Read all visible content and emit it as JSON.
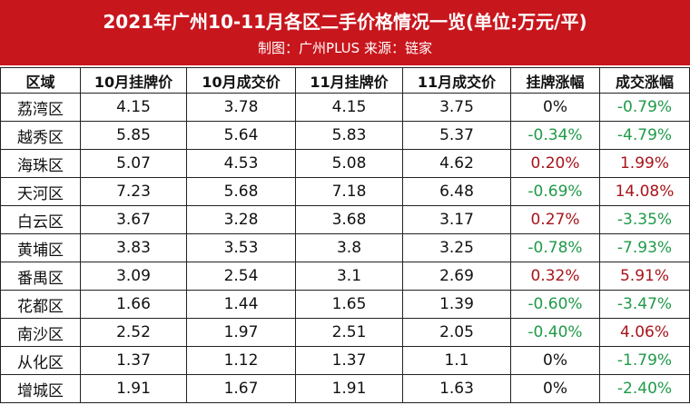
{
  "header": {
    "title": "2021年广州10-11月各区二手价格情况一览(单位:万元/平)",
    "subtitle": "制图：广州PLUS  来源：链家"
  },
  "table": {
    "columns": [
      "区域",
      "10月挂牌价",
      "10月成交价",
      "11月挂牌价",
      "11月成交价",
      "挂牌涨幅",
      "成交涨幅"
    ],
    "rows": [
      [
        "荔湾区",
        "4.15",
        "3.78",
        "4.15",
        "3.75",
        "0%",
        "-0.79%"
      ],
      [
        "越秀区",
        "5.85",
        "5.64",
        "5.83",
        "5.37",
        "-0.34%",
        "-4.79%"
      ],
      [
        "海珠区",
        "5.07",
        "4.53",
        "5.08",
        "4.62",
        "0.20%",
        "1.99%"
      ],
      [
        "天河区",
        "7.23",
        "5.68",
        "7.18",
        "6.48",
        "-0.69%",
        "14.08%"
      ],
      [
        "白云区",
        "3.67",
        "3.28",
        "3.68",
        "3.17",
        "0.27%",
        "-3.35%"
      ],
      [
        "黄埔区",
        "3.83",
        "3.53",
        "3.8",
        "3.25",
        "-0.78%",
        "-7.93%"
      ],
      [
        "番禺区",
        "3.09",
        "2.54",
        "3.1",
        "2.69",
        "0.32%",
        "5.91%"
      ],
      [
        "花都区",
        "1.66",
        "1.44",
        "1.65",
        "1.39",
        "-0.60%",
        "-3.47%"
      ],
      [
        "南沙区",
        "2.52",
        "1.97",
        "2.51",
        "2.05",
        "-0.40%",
        "4.06%"
      ],
      [
        "从化区",
        "1.37",
        "1.12",
        "1.37",
        "1.1",
        "0%",
        "-1.79%"
      ],
      [
        "增城区",
        "1.91",
        "1.67",
        "1.91",
        "1.63",
        "0%",
        "-2.40%"
      ]
    ]
  }
}
